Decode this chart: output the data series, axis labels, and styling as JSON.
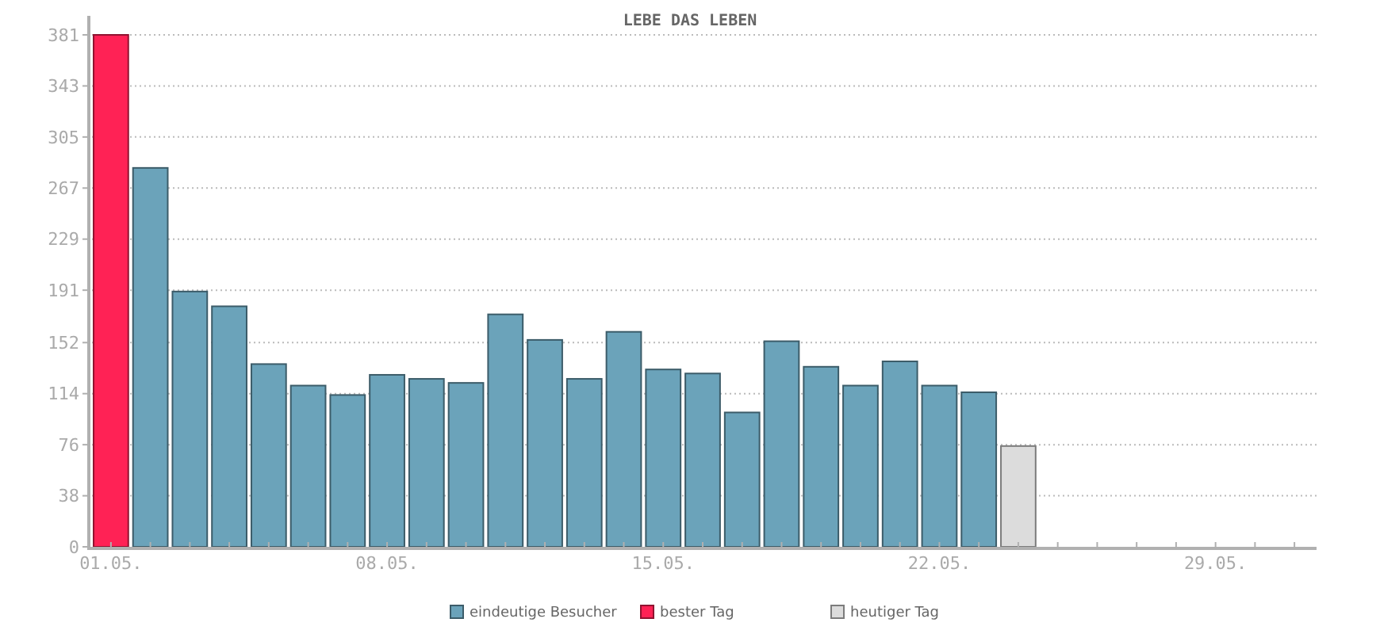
{
  "chart_data": {
    "type": "bar",
    "title": "LEBE DAS LEBEN",
    "categories": [
      "01.05.",
      null,
      null,
      null,
      null,
      null,
      null,
      "08.05.",
      null,
      null,
      null,
      null,
      null,
      null,
      "15.05.",
      null,
      null,
      null,
      null,
      null,
      null,
      "22.05.",
      null,
      null,
      null,
      null,
      null,
      null,
      "29.05.",
      null,
      null
    ],
    "series": [
      {
        "name": "eindeutige Besucher",
        "color": "#6ba3ba",
        "values": [
          null,
          282,
          190,
          179,
          136,
          120,
          113,
          128,
          125,
          122,
          173,
          154,
          125,
          160,
          132,
          129,
          100,
          153,
          134,
          120,
          138,
          120,
          115,
          null,
          null,
          null,
          null,
          null,
          null,
          null,
          null
        ]
      },
      {
        "name": "bester Tag",
        "color": "#ff2255",
        "values": [
          381,
          null,
          null,
          null,
          null,
          null,
          null,
          null,
          null,
          null,
          null,
          null,
          null,
          null,
          null,
          null,
          null,
          null,
          null,
          null,
          null,
          null,
          null,
          null,
          null,
          null,
          null,
          null,
          null,
          null,
          null
        ]
      },
      {
        "name": "heutiger Tag",
        "color": "#dcdcdc",
        "values": [
          null,
          null,
          null,
          null,
          null,
          null,
          null,
          null,
          null,
          null,
          null,
          null,
          null,
          null,
          null,
          null,
          null,
          null,
          null,
          null,
          null,
          null,
          null,
          75,
          null,
          null,
          null,
          null,
          null,
          null,
          null
        ]
      }
    ],
    "ylim": [
      0,
      381
    ],
    "yticks": [
      0,
      38,
      76,
      114,
      152,
      191,
      229,
      267,
      305,
      343,
      381
    ],
    "grid": "y",
    "legend": "bottom"
  }
}
